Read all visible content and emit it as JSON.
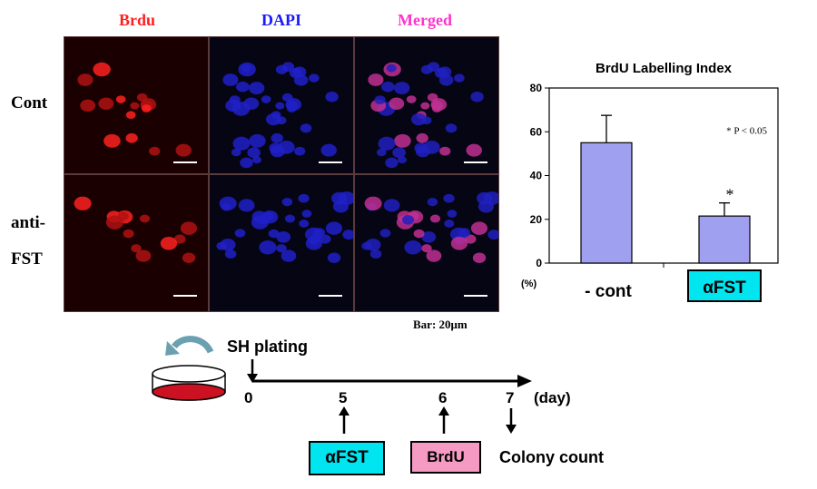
{
  "columns": [
    "Brdu",
    "DAPI",
    "Merged"
  ],
  "column_colors": [
    "#ff2020",
    "#1a1aff",
    "#ff33cc"
  ],
  "rows": [
    "Cont",
    "anti-\nFST"
  ],
  "scale_bar_label": "Bar: 20μm",
  "chart_data": {
    "type": "bar",
    "title": "BrdU Labelling Index",
    "categories": [
      "- cont",
      "αFST"
    ],
    "values": [
      55,
      21.5
    ],
    "errors": [
      12.5,
      6
    ],
    "ylim": [
      0,
      80
    ],
    "yticks": [
      0,
      20,
      40,
      60,
      80
    ],
    "yunit": "(%)",
    "annotation": "* P < 0.05",
    "significance_marker": "*",
    "bar_color": "#a0a0f0",
    "highlight_color": "#00e5f0"
  },
  "timeline": {
    "plating_label": "SH plating",
    "days": [
      "0",
      "5",
      "6",
      "7"
    ],
    "day_unit": "(day)",
    "events": [
      "αFST",
      "BrdU",
      "Colony count"
    ]
  }
}
